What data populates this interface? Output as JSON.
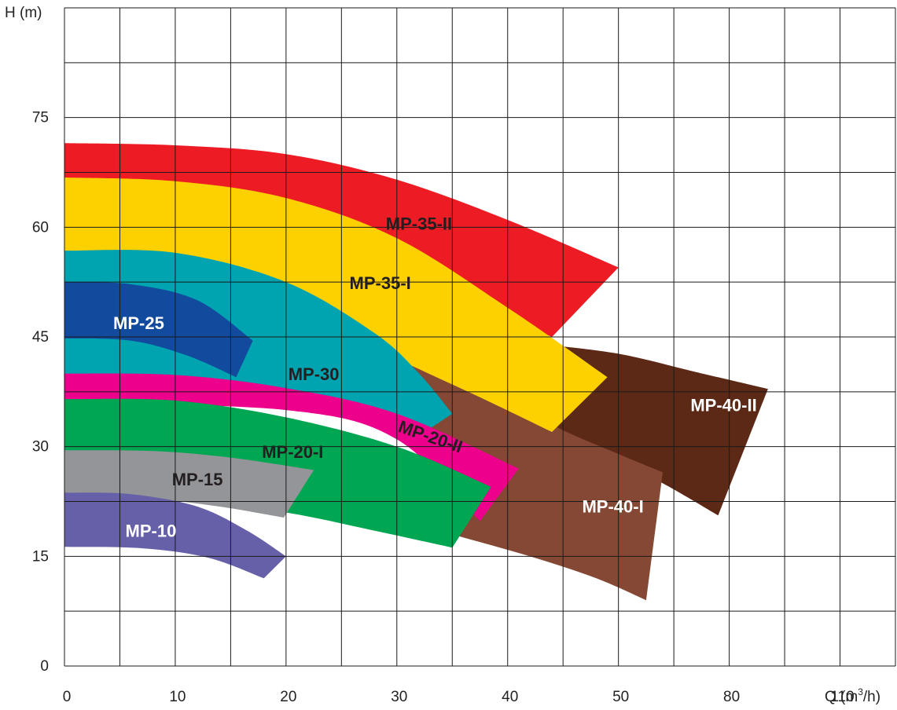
{
  "chart_data": {
    "type": "area",
    "title": "",
    "xlabel": "Q (m",
    "xlabel_sup": "3",
    "xlabel_tail": "/h)",
    "ylabel": "H (m)",
    "ylim": [
      0,
      90
    ],
    "y_ticks": [
      "0",
      "15",
      "30",
      "45",
      "60",
      "75"
    ],
    "x_ticks": [
      "0",
      "10",
      "20",
      "30",
      "40",
      "50",
      "80",
      "110"
    ],
    "grid": true,
    "series": [
      {
        "name": "MP-40-II",
        "color": "#5c2916",
        "label_color": "#ffffff",
        "label_at": [
          59.5,
          35.5
        ],
        "upper": [
          [
            43,
            44
          ],
          [
            50,
            42.7
          ],
          [
            57,
            40.2
          ],
          [
            63.5,
            37.9
          ]
        ],
        "lower": [
          [
            37,
            33
          ],
          [
            45,
            30
          ],
          [
            52,
            26.5
          ],
          [
            59,
            20.6
          ]
        ]
      },
      {
        "name": "MP-40-I",
        "color": "#854834",
        "label_color": "#ffffff",
        "label_at": [
          49.5,
          21.6
        ],
        "upper": [
          [
            30,
            43
          ],
          [
            38,
            38.5
          ],
          [
            44,
            33
          ],
          [
            50,
            29
          ],
          [
            54,
            26.5
          ]
        ],
        "lower": [
          [
            35,
            18
          ],
          [
            42,
            15
          ],
          [
            48,
            12
          ],
          [
            52.5,
            9
          ]
        ]
      },
      {
        "name": "MP-35-II",
        "color": "#ed1c24",
        "label_color": "#231f20",
        "label_at": [
          32,
          60.3
        ],
        "upper": [
          [
            0,
            71.5
          ],
          [
            10,
            71.2
          ],
          [
            20,
            70
          ],
          [
            30,
            66.5
          ],
          [
            40,
            61
          ],
          [
            50,
            54.5
          ]
        ],
        "lower": [
          [
            0,
            58
          ],
          [
            20,
            57
          ],
          [
            33,
            52
          ],
          [
            44,
            45
          ]
        ]
      },
      {
        "name": "MP-35-I",
        "color": "#fdd100",
        "label_color": "#231f20",
        "label_at": [
          28.5,
          52.2
        ],
        "upper": [
          [
            0,
            66.8
          ],
          [
            10,
            66.3
          ],
          [
            20,
            64
          ],
          [
            30,
            58.5
          ],
          [
            40,
            49
          ],
          [
            49,
            39.5
          ]
        ],
        "lower": [
          [
            0,
            50
          ],
          [
            15,
            48.5
          ],
          [
            25,
            45
          ],
          [
            35,
            38.5
          ],
          [
            44,
            32
          ]
        ]
      },
      {
        "name": "MP-30",
        "color": "#00a3b0",
        "label_color": "#231f20",
        "label_at": [
          22.5,
          39.7
        ],
        "upper": [
          [
            0,
            56.8
          ],
          [
            10,
            56.5
          ],
          [
            20,
            52.5
          ],
          [
            28,
            45.5
          ],
          [
            32,
            40
          ],
          [
            35,
            34.5
          ]
        ],
        "lower": [
          [
            0,
            38
          ],
          [
            15,
            36.5
          ],
          [
            25,
            34
          ],
          [
            32,
            31.5
          ]
        ]
      },
      {
        "name": "MP-25",
        "color": "#124a9e",
        "label_color": "#ffffff",
        "label_at": [
          6.7,
          46.7
        ],
        "upper": [
          [
            0,
            52.5
          ],
          [
            6,
            52.2
          ],
          [
            12,
            50
          ],
          [
            17,
            44.5
          ]
        ],
        "lower": [
          [
            0,
            44.8
          ],
          [
            6,
            44.5
          ],
          [
            11,
            42.5
          ],
          [
            15.5,
            39.5
          ]
        ]
      },
      {
        "name": "MP-20-II",
        "color": "#ec008c",
        "label_color": "#231f20",
        "label_at": [
          33,
          31.2
        ],
        "rotate": 19,
        "upper": [
          [
            0,
            40
          ],
          [
            10,
            39.8
          ],
          [
            20,
            38
          ],
          [
            30,
            34.5
          ],
          [
            41,
            27
          ]
        ],
        "lower": [
          [
            0,
            36
          ],
          [
            20,
            35
          ],
          [
            30,
            31
          ],
          [
            37.5,
            19.8
          ]
        ]
      },
      {
        "name": "MP-20-I",
        "color": "#00a651",
        "label_color": "#231f20",
        "label_at": [
          20.6,
          29.1
        ],
        "upper": [
          [
            0,
            36.5
          ],
          [
            10,
            36.3
          ],
          [
            20,
            34
          ],
          [
            30,
            30
          ],
          [
            38.5,
            24.5
          ]
        ],
        "lower": [
          [
            0,
            24
          ],
          [
            10,
            23
          ],
          [
            20,
            21
          ],
          [
            28,
            18.5
          ],
          [
            35,
            16.2
          ]
        ]
      },
      {
        "name": "MP-15",
        "color": "#939598",
        "label_color": "#231f20",
        "label_at": [
          12,
          25.3
        ],
        "upper": [
          [
            0,
            29.5
          ],
          [
            8,
            29.4
          ],
          [
            15,
            28.5
          ],
          [
            22.5,
            26.8
          ]
        ],
        "lower": [
          [
            0,
            23
          ],
          [
            8,
            22.8
          ],
          [
            14,
            21.8
          ],
          [
            19.8,
            20.3
          ]
        ]
      },
      {
        "name": "MP-10",
        "color": "#6560a8",
        "label_color": "#ffffff",
        "label_at": [
          7.8,
          18.3
        ],
        "upper": [
          [
            0,
            23.7
          ],
          [
            6,
            23.5
          ],
          [
            12,
            21.8
          ],
          [
            16.5,
            18.5
          ],
          [
            20,
            15
          ]
        ],
        "lower": [
          [
            0,
            16.3
          ],
          [
            7,
            16.1
          ],
          [
            13,
            14.8
          ],
          [
            18,
            12
          ]
        ]
      }
    ]
  }
}
